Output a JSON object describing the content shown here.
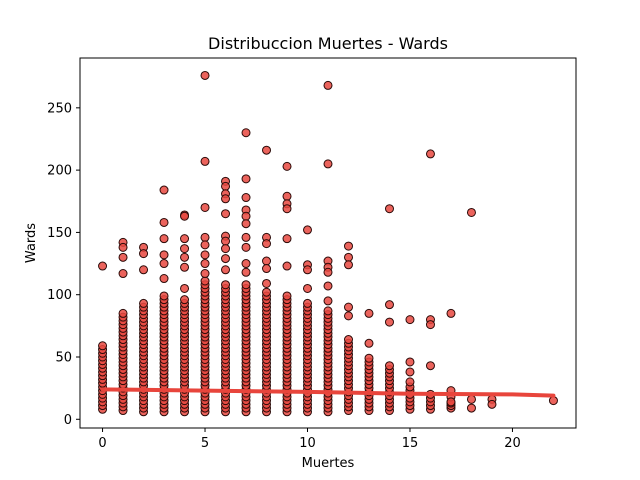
{
  "chart_data": {
    "type": "scatter",
    "title": "Distribuccion Muertes - Wards",
    "xlabel": "Muertes",
    "ylabel": "Wards",
    "xlim": [
      -1.1,
      23.1
    ],
    "ylim": [
      -7,
      290
    ],
    "xticks": [
      0,
      5,
      10,
      15,
      20
    ],
    "yticks": [
      0,
      50,
      100,
      150,
      200,
      250
    ],
    "grid": false,
    "legend": "none",
    "point_color": "#e8483f",
    "point_edge_color": "#2b0a08",
    "line_color": "#e8453c",
    "outliers": [
      {
        "x": 0,
        "y": 123
      },
      {
        "x": 1,
        "y": 142
      },
      {
        "x": 1,
        "y": 138
      },
      {
        "x": 1,
        "y": 130
      },
      {
        "x": 1,
        "y": 117
      },
      {
        "x": 2,
        "y": 138
      },
      {
        "x": 2,
        "y": 133
      },
      {
        "x": 2,
        "y": 120
      },
      {
        "x": 3,
        "y": 184
      },
      {
        "x": 3,
        "y": 158
      },
      {
        "x": 3,
        "y": 145
      },
      {
        "x": 3,
        "y": 132
      },
      {
        "x": 3,
        "y": 125
      },
      {
        "x": 3,
        "y": 113
      },
      {
        "x": 4,
        "y": 164
      },
      {
        "x": 4,
        "y": 163
      },
      {
        "x": 4,
        "y": 145
      },
      {
        "x": 4,
        "y": 137
      },
      {
        "x": 4,
        "y": 130
      },
      {
        "x": 4,
        "y": 122
      },
      {
        "x": 4,
        "y": 105
      },
      {
        "x": 5,
        "y": 276
      },
      {
        "x": 5,
        "y": 207
      },
      {
        "x": 5,
        "y": 170
      },
      {
        "x": 5,
        "y": 146
      },
      {
        "x": 5,
        "y": 140
      },
      {
        "x": 5,
        "y": 132
      },
      {
        "x": 5,
        "y": 125
      },
      {
        "x": 5,
        "y": 117
      },
      {
        "x": 6,
        "y": 191
      },
      {
        "x": 6,
        "y": 187
      },
      {
        "x": 6,
        "y": 181
      },
      {
        "x": 6,
        "y": 177
      },
      {
        "x": 6,
        "y": 165
      },
      {
        "x": 6,
        "y": 147
      },
      {
        "x": 6,
        "y": 143
      },
      {
        "x": 6,
        "y": 137
      },
      {
        "x": 6,
        "y": 129
      },
      {
        "x": 6,
        "y": 120
      },
      {
        "x": 7,
        "y": 230
      },
      {
        "x": 7,
        "y": 193
      },
      {
        "x": 7,
        "y": 178
      },
      {
        "x": 7,
        "y": 168
      },
      {
        "x": 7,
        "y": 163
      },
      {
        "x": 7,
        "y": 157
      },
      {
        "x": 7,
        "y": 146
      },
      {
        "x": 7,
        "y": 138
      },
      {
        "x": 7,
        "y": 125
      },
      {
        "x": 7,
        "y": 118
      },
      {
        "x": 8,
        "y": 216
      },
      {
        "x": 8,
        "y": 146
      },
      {
        "x": 8,
        "y": 141
      },
      {
        "x": 8,
        "y": 127
      },
      {
        "x": 8,
        "y": 121
      },
      {
        "x": 8,
        "y": 109
      },
      {
        "x": 9,
        "y": 203
      },
      {
        "x": 9,
        "y": 179
      },
      {
        "x": 9,
        "y": 173
      },
      {
        "x": 9,
        "y": 169
      },
      {
        "x": 9,
        "y": 145
      },
      {
        "x": 9,
        "y": 123
      },
      {
        "x": 10,
        "y": 152
      },
      {
        "x": 10,
        "y": 124
      },
      {
        "x": 10,
        "y": 120
      },
      {
        "x": 10,
        "y": 105
      },
      {
        "x": 11,
        "y": 268
      },
      {
        "x": 11,
        "y": 205
      },
      {
        "x": 11,
        "y": 127
      },
      {
        "x": 11,
        "y": 122
      },
      {
        "x": 11,
        "y": 118
      },
      {
        "x": 11,
        "y": 107
      },
      {
        "x": 11,
        "y": 95
      },
      {
        "x": 12,
        "y": 139
      },
      {
        "x": 12,
        "y": 130
      },
      {
        "x": 12,
        "y": 124
      },
      {
        "x": 12,
        "y": 90
      },
      {
        "x": 12,
        "y": 83
      },
      {
        "x": 13,
        "y": 85
      },
      {
        "x": 13,
        "y": 61
      },
      {
        "x": 14,
        "y": 169
      },
      {
        "x": 14,
        "y": 92
      },
      {
        "x": 14,
        "y": 78
      },
      {
        "x": 15,
        "y": 80
      },
      {
        "x": 15,
        "y": 46
      },
      {
        "x": 15,
        "y": 38
      },
      {
        "x": 15,
        "y": 30
      },
      {
        "x": 16,
        "y": 213
      },
      {
        "x": 16,
        "y": 80
      },
      {
        "x": 16,
        "y": 76
      },
      {
        "x": 16,
        "y": 43
      },
      {
        "x": 17,
        "y": 85
      },
      {
        "x": 17,
        "y": 23
      },
      {
        "x": 17,
        "y": 18
      },
      {
        "x": 17,
        "y": 14
      },
      {
        "x": 18,
        "y": 166
      },
      {
        "x": 18,
        "y": 16
      },
      {
        "x": 18,
        "y": 9
      },
      {
        "x": 19,
        "y": 16
      },
      {
        "x": 19,
        "y": 12
      },
      {
        "x": 22,
        "y": 15
      }
    ],
    "columns": [
      {
        "x": 0,
        "ymin": 8,
        "ymax": 60,
        "step": 3
      },
      {
        "x": 1,
        "ymin": 7,
        "ymax": 86,
        "step": 3
      },
      {
        "x": 2,
        "ymin": 6,
        "ymax": 93,
        "step": 3
      },
      {
        "x": 3,
        "ymin": 6,
        "ymax": 100,
        "step": 3
      },
      {
        "x": 4,
        "ymin": 6,
        "ymax": 98,
        "step": 3
      },
      {
        "x": 5,
        "ymin": 6,
        "ymax": 112,
        "step": 3
      },
      {
        "x": 6,
        "ymin": 6,
        "ymax": 110,
        "step": 3
      },
      {
        "x": 7,
        "ymin": 6,
        "ymax": 108,
        "step": 3
      },
      {
        "x": 8,
        "ymin": 6,
        "ymax": 102,
        "step": 3
      },
      {
        "x": 9,
        "ymin": 6,
        "ymax": 100,
        "step": 3
      },
      {
        "x": 10,
        "ymin": 6,
        "ymax": 95,
        "step": 3
      },
      {
        "x": 11,
        "ymin": 6,
        "ymax": 88,
        "step": 3
      },
      {
        "x": 12,
        "ymin": 7,
        "ymax": 65,
        "step": 3
      },
      {
        "x": 13,
        "ymin": 7,
        "ymax": 50,
        "step": 3
      },
      {
        "x": 14,
        "ymin": 7,
        "ymax": 44,
        "step": 3
      },
      {
        "x": 15,
        "ymin": 8,
        "ymax": 28,
        "step": 3
      },
      {
        "x": 16,
        "ymin": 8,
        "ymax": 22,
        "step": 3
      },
      {
        "x": 17,
        "ymin": 9,
        "ymax": 13,
        "step": 2
      }
    ],
    "trend_line": [
      {
        "x": 0,
        "y": 24
      },
      {
        "x": 5,
        "y": 23
      },
      {
        "x": 10,
        "y": 22
      },
      {
        "x": 15,
        "y": 20.5
      },
      {
        "x": 20,
        "y": 20
      },
      {
        "x": 22,
        "y": 19
      }
    ]
  }
}
